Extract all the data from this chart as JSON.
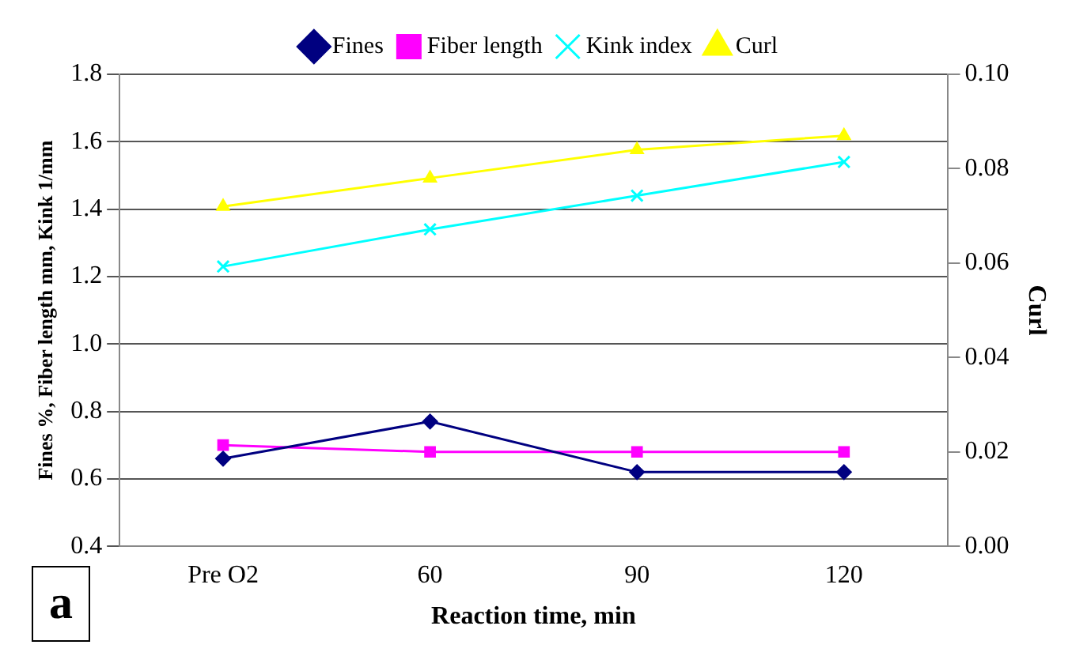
{
  "chart_data": {
    "type": "line",
    "xlabel": "Reaction time, min",
    "ylabel": "Fines %, Fiber length mm, Kink 1/mm",
    "y2label": "Curl",
    "categories": [
      "Pre O2",
      "60",
      "90",
      "120"
    ],
    "series": [
      {
        "name": "Fines",
        "color": "#000080",
        "marker": "diamond",
        "values": [
          0.66,
          0.77,
          0.62,
          0.62
        ]
      },
      {
        "name": "Fiber length",
        "color": "#ff00ff",
        "marker": "square",
        "values": [
          0.7,
          0.68,
          0.68,
          0.68
        ]
      },
      {
        "name": "Kink index",
        "color": "#00ffff",
        "marker": "cross",
        "values": [
          1.23,
          1.34,
          1.44,
          1.54
        ]
      },
      {
        "name": "Curl",
        "color": "#ffff00",
        "marker": "triangle",
        "axis": "y2",
        "values": [
          0.072,
          0.078,
          0.084,
          0.087
        ]
      }
    ],
    "ylim": [
      0.4,
      1.8
    ],
    "yticks": [
      0.4,
      0.6,
      0.8,
      {
        "value": 1,
        "label": "1.0"
      },
      1.2,
      1.4,
      1.6,
      1.8
    ],
    "y2lim": [
      0,
      0.1
    ],
    "y2ticks": [
      {
        "value": 0,
        "label": "0.00"
      },
      0.02,
      0.04,
      0.06,
      0.08,
      {
        "value": 0.1,
        "label": "0.10"
      }
    ],
    "grid": "y",
    "legend": "top",
    "annotations": [
      "a"
    ]
  }
}
